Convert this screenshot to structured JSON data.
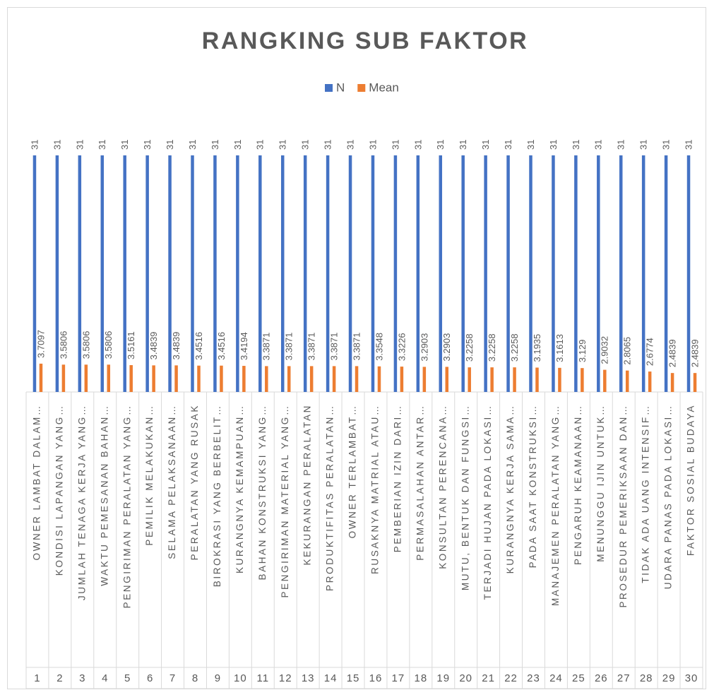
{
  "chart_data": {
    "type": "bar",
    "title": "RANGKING SUB FAKTOR",
    "category_numbers": [
      1,
      2,
      3,
      4,
      5,
      6,
      7,
      8,
      9,
      10,
      11,
      12,
      13,
      14,
      15,
      16,
      17,
      18,
      19,
      20,
      21,
      22,
      23,
      24,
      25,
      26,
      27,
      28,
      29,
      30
    ],
    "categories": [
      "OWNER LAMBAT DALAM…",
      "KONDISI LAPANGAN YANG…",
      "JUMLAH TENAGA KERJA YANG…",
      "WAKTU PEMESANAN BAHAN…",
      "PENGIRIMAN PERALATAN YANG…",
      "PEMILIK MELAKUKAN…",
      "SELAMA PELAKSANAAN…",
      "PERALATAN YANG RUSAK",
      "BIROKRASI YANG BERBELIT…",
      "KURANGNYA KEMAMPUAN…",
      "BAHAN KONSTRUKSI YANG…",
      "PENGIRIMAN MATERIAL YANG…",
      "KEKURANGAN PERALATAN",
      "PRODUKTIFITAS PERALATAN…",
      "OWNER TERLAMBAT…",
      "RUSAKNYA MATRIAL ATAU…",
      "PEMBERIAN IZIN DARI…",
      "PERMASALAHAN ANTAR…",
      "KONSULTAN PERENCANA…",
      "MUTU, BENTUK DAN FUNGSI…",
      "TERJADI HUJAN PADA LOKASI…",
      "KURANGNYA KERJA SAMA…",
      "PADA SAAT KONSTRUKSI…",
      "MANAJEMEN PERALATAN YANG…",
      "PENGARUH KEAMANAAN…",
      "MENUNGGU IJIN UNTUK…",
      "PROSEDUR PEMERIKSAAN DAN…",
      "TIDAK ADA UANG INTENSIF…",
      "UDARA PANAS PADA LOKASI…",
      "FAKTOR SOSIAL BUDAYA"
    ],
    "series": [
      {
        "name": "N",
        "color": "#4472c4",
        "values": [
          31,
          31,
          31,
          31,
          31,
          31,
          31,
          31,
          31,
          31,
          31,
          31,
          31,
          31,
          31,
          31,
          31,
          31,
          31,
          31,
          31,
          31,
          31,
          31,
          31,
          31,
          31,
          31,
          31,
          31
        ]
      },
      {
        "name": "Mean",
        "color": "#ed7d31",
        "values": [
          3.7097,
          3.5806,
          3.5806,
          3.5806,
          3.5161,
          3.4839,
          3.4839,
          3.4516,
          3.4516,
          3.4194,
          3.3871,
          3.3871,
          3.3871,
          3.3871,
          3.3871,
          3.3548,
          3.3226,
          3.2903,
          3.2903,
          3.2258,
          3.2258,
          3.2258,
          3.1935,
          3.1613,
          3.129,
          2.9032,
          2.8065,
          2.6774,
          2.4839,
          2.4839
        ]
      }
    ],
    "legend": "top"
  }
}
